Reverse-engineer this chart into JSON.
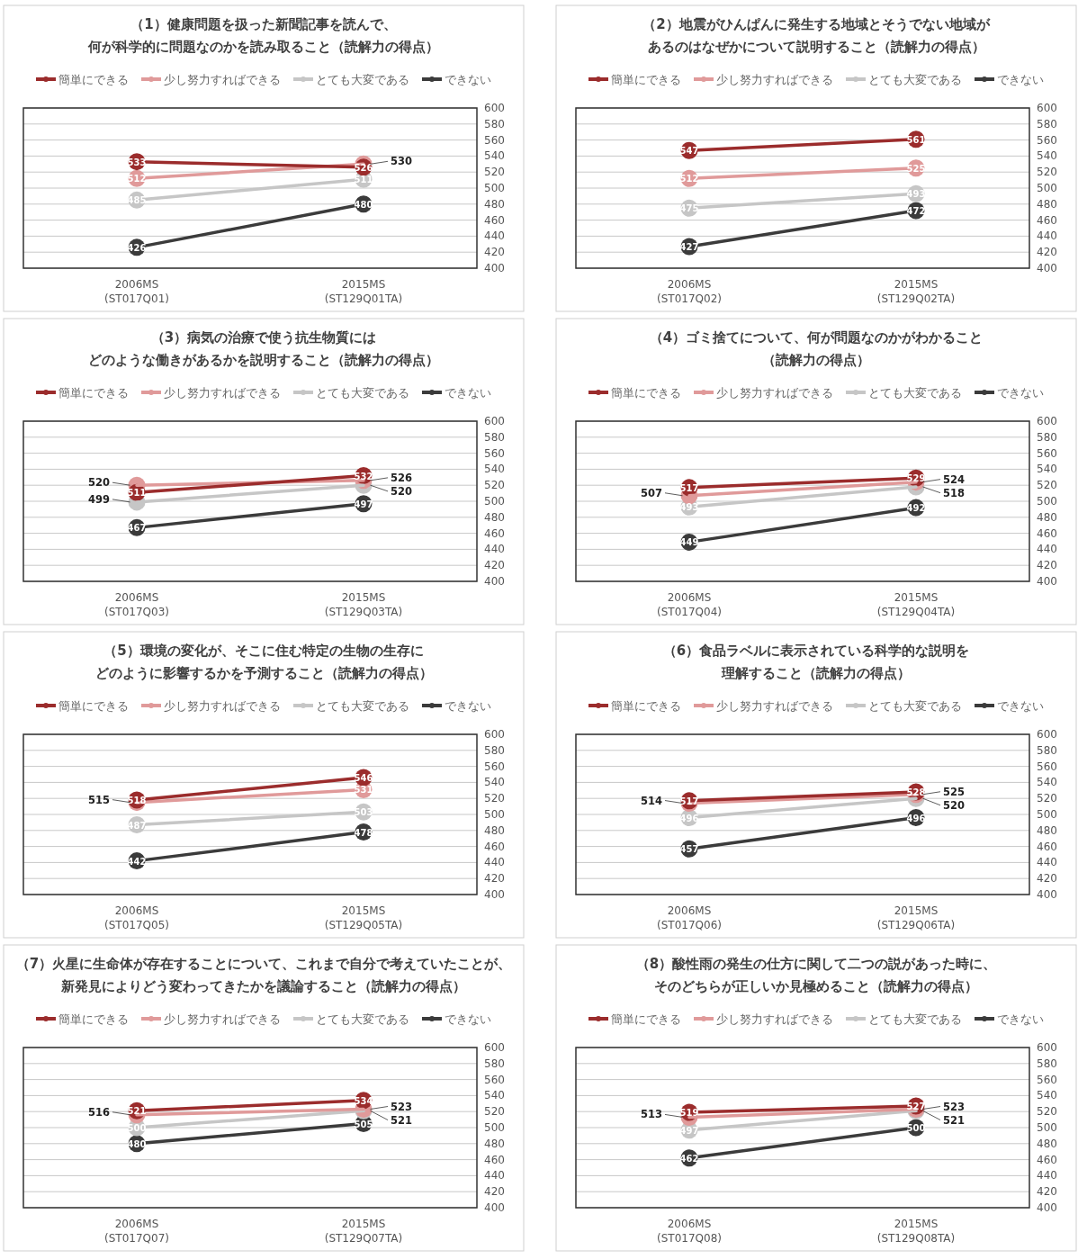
{
  "chart_data": [
    {
      "type": "line",
      "title": "（1）健康問題を扱った新聞記事を読んで、",
      "subtitle": "何が科学的に問題なのかを読み取ること（読解力の得点）",
      "categories": [
        "2006MS\n(ST017Q01)",
        "2015MS\n(ST129Q01TA)"
      ],
      "series": [
        {
          "name": "簡単にできる",
          "color": "#9b2c2c",
          "values": [
            533,
            526
          ]
        },
        {
          "name": "少し努力すればできる",
          "color": "#e09a9a",
          "values": [
            512,
            530
          ]
        },
        {
          "name": "とても大変である",
          "color": "#c6c6c6",
          "values": [
            485,
            511
          ]
        },
        {
          "name": "できない",
          "color": "#3b3b3b",
          "values": [
            426,
            480
          ]
        }
      ],
      "ylim": [
        400,
        600
      ],
      "yticks": [
        400,
        420,
        440,
        460,
        480,
        500,
        520,
        540,
        560,
        580,
        600
      ],
      "grid": "y",
      "legend": "top",
      "marker": "circle",
      "data_labels": true
    },
    {
      "type": "line",
      "title": "（2）地震がひんぱんに発生する地域とそうでない地域が",
      "subtitle": "あるのはなぜかについて説明すること（読解力の得点）",
      "categories": [
        "2006MS\n(ST017Q02)",
        "2015MS\n(ST129Q02TA)"
      ],
      "series": [
        {
          "name": "簡単にできる",
          "color": "#9b2c2c",
          "values": [
            547,
            561
          ]
        },
        {
          "name": "少し努力すればできる",
          "color": "#e09a9a",
          "values": [
            512,
            525
          ]
        },
        {
          "name": "とても大変である",
          "color": "#c6c6c6",
          "values": [
            475,
            493
          ]
        },
        {
          "name": "できない",
          "color": "#3b3b3b",
          "values": [
            427,
            472
          ]
        }
      ],
      "ylim": [
        400,
        600
      ],
      "yticks": [
        400,
        420,
        440,
        460,
        480,
        500,
        520,
        540,
        560,
        580,
        600
      ],
      "grid": "y",
      "legend": "top",
      "marker": "circle",
      "data_labels": true
    },
    {
      "type": "line",
      "title": "（3）病気の治療で使う抗生物質には",
      "subtitle": "どのような働きがあるかを説明すること（読解力の得点）",
      "categories": [
        "2006MS\n(ST017Q03)",
        "2015MS\n(ST129Q03TA)"
      ],
      "series": [
        {
          "name": "簡単にできる",
          "color": "#9b2c2c",
          "values": [
            511,
            532
          ]
        },
        {
          "name": "少し努力すればできる",
          "color": "#e09a9a",
          "values": [
            520,
            526
          ]
        },
        {
          "name": "とても大変である",
          "color": "#c6c6c6",
          "values": [
            499,
            520
          ]
        },
        {
          "name": "できない",
          "color": "#3b3b3b",
          "values": [
            467,
            497
          ]
        }
      ],
      "ylim": [
        400,
        600
      ],
      "yticks": [
        400,
        420,
        440,
        460,
        480,
        500,
        520,
        540,
        560,
        580,
        600
      ],
      "grid": "y",
      "legend": "top",
      "marker": "circle",
      "data_labels": true
    },
    {
      "type": "line",
      "title": "（4）ゴミ捨てについて、何が問題なのかがわかること",
      "subtitle": "（読解力の得点）",
      "categories": [
        "2006MS\n(ST017Q04)",
        "2015MS\n(ST129Q04TA)"
      ],
      "series": [
        {
          "name": "簡単にできる",
          "color": "#9b2c2c",
          "values": [
            517,
            529
          ]
        },
        {
          "name": "少し努力すればできる",
          "color": "#e09a9a",
          "values": [
            507,
            524
          ]
        },
        {
          "name": "とても大変である",
          "color": "#c6c6c6",
          "values": [
            493,
            518
          ]
        },
        {
          "name": "できない",
          "color": "#3b3b3b",
          "values": [
            449,
            492
          ]
        }
      ],
      "ylim": [
        400,
        600
      ],
      "yticks": [
        400,
        420,
        440,
        460,
        480,
        500,
        520,
        540,
        560,
        580,
        600
      ],
      "grid": "y",
      "legend": "top",
      "marker": "circle",
      "data_labels": true
    },
    {
      "type": "line",
      "title": "（5）環境の変化が、そこに住む特定の生物の生存に",
      "subtitle": "どのように影響するかを予測すること（読解力の得点）",
      "categories": [
        "2006MS\n(ST017Q05)",
        "2015MS\n(ST129Q05TA)"
      ],
      "series": [
        {
          "name": "簡単にできる",
          "color": "#9b2c2c",
          "values": [
            518,
            546
          ]
        },
        {
          "name": "少し努力すればできる",
          "color": "#e09a9a",
          "values": [
            515,
            531
          ]
        },
        {
          "name": "とても大変である",
          "color": "#c6c6c6",
          "values": [
            487,
            503
          ]
        },
        {
          "name": "できない",
          "color": "#3b3b3b",
          "values": [
            442,
            478
          ]
        }
      ],
      "ylim": [
        400,
        600
      ],
      "yticks": [
        400,
        420,
        440,
        460,
        480,
        500,
        520,
        540,
        560,
        580,
        600
      ],
      "grid": "y",
      "legend": "top",
      "marker": "circle",
      "data_labels": true
    },
    {
      "type": "line",
      "title": "（6）食品ラベルに表示されている科学的な説明を",
      "subtitle": "理解すること（読解力の得点）",
      "categories": [
        "2006MS\n(ST017Q06)",
        "2015MS\n(ST129Q06TA)"
      ],
      "series": [
        {
          "name": "簡単にできる",
          "color": "#9b2c2c",
          "values": [
            517,
            528
          ]
        },
        {
          "name": "少し努力すればできる",
          "color": "#e09a9a",
          "values": [
            514,
            525
          ]
        },
        {
          "name": "とても大変である",
          "color": "#c6c6c6",
          "values": [
            496,
            520
          ]
        },
        {
          "name": "できない",
          "color": "#3b3b3b",
          "values": [
            457,
            496
          ]
        }
      ],
      "ylim": [
        400,
        600
      ],
      "yticks": [
        400,
        420,
        440,
        460,
        480,
        500,
        520,
        540,
        560,
        580,
        600
      ],
      "grid": "y",
      "legend": "top",
      "marker": "circle",
      "data_labels": true
    },
    {
      "type": "line",
      "title": "（7）火星に生命体が存在することについて、これまで自分で考えていたことが、",
      "subtitle": "新発見によりどう変わってきたかを議論すること（読解力の得点）",
      "categories": [
        "2006MS\n(ST017Q07)",
        "2015MS\n(ST129Q07TA)"
      ],
      "series": [
        {
          "name": "簡単にできる",
          "color": "#9b2c2c",
          "values": [
            521,
            534
          ]
        },
        {
          "name": "少し努力すればできる",
          "color": "#e09a9a",
          "values": [
            516,
            523
          ]
        },
        {
          "name": "とても大変である",
          "color": "#c6c6c6",
          "values": [
            500,
            521
          ]
        },
        {
          "name": "できない",
          "color": "#3b3b3b",
          "values": [
            480,
            505
          ]
        }
      ],
      "ylim": [
        400,
        600
      ],
      "yticks": [
        400,
        420,
        440,
        460,
        480,
        500,
        520,
        540,
        560,
        580,
        600
      ],
      "grid": "y",
      "legend": "top",
      "marker": "circle",
      "data_labels": true
    },
    {
      "type": "line",
      "title": "（8）酸性雨の発生の仕方に関して二つの説があった時に、",
      "subtitle": "そのどちらが正しいか見極めること（読解力の得点）",
      "categories": [
        "2006MS\n(ST017Q08)",
        "2015MS\n(ST129Q08TA)"
      ],
      "series": [
        {
          "name": "簡単にできる",
          "color": "#9b2c2c",
          "values": [
            519,
            527
          ]
        },
        {
          "name": "少し努力すればできる",
          "color": "#e09a9a",
          "values": [
            513,
            523
          ]
        },
        {
          "name": "とても大変である",
          "color": "#c6c6c6",
          "values": [
            497,
            521
          ]
        },
        {
          "name": "できない",
          "color": "#3b3b3b",
          "values": [
            462,
            500
          ]
        }
      ],
      "ylim": [
        400,
        600
      ],
      "yticks": [
        400,
        420,
        440,
        460,
        480,
        500,
        520,
        540,
        560,
        580,
        600
      ],
      "grid": "y",
      "legend": "top",
      "marker": "circle",
      "data_labels": true
    }
  ]
}
